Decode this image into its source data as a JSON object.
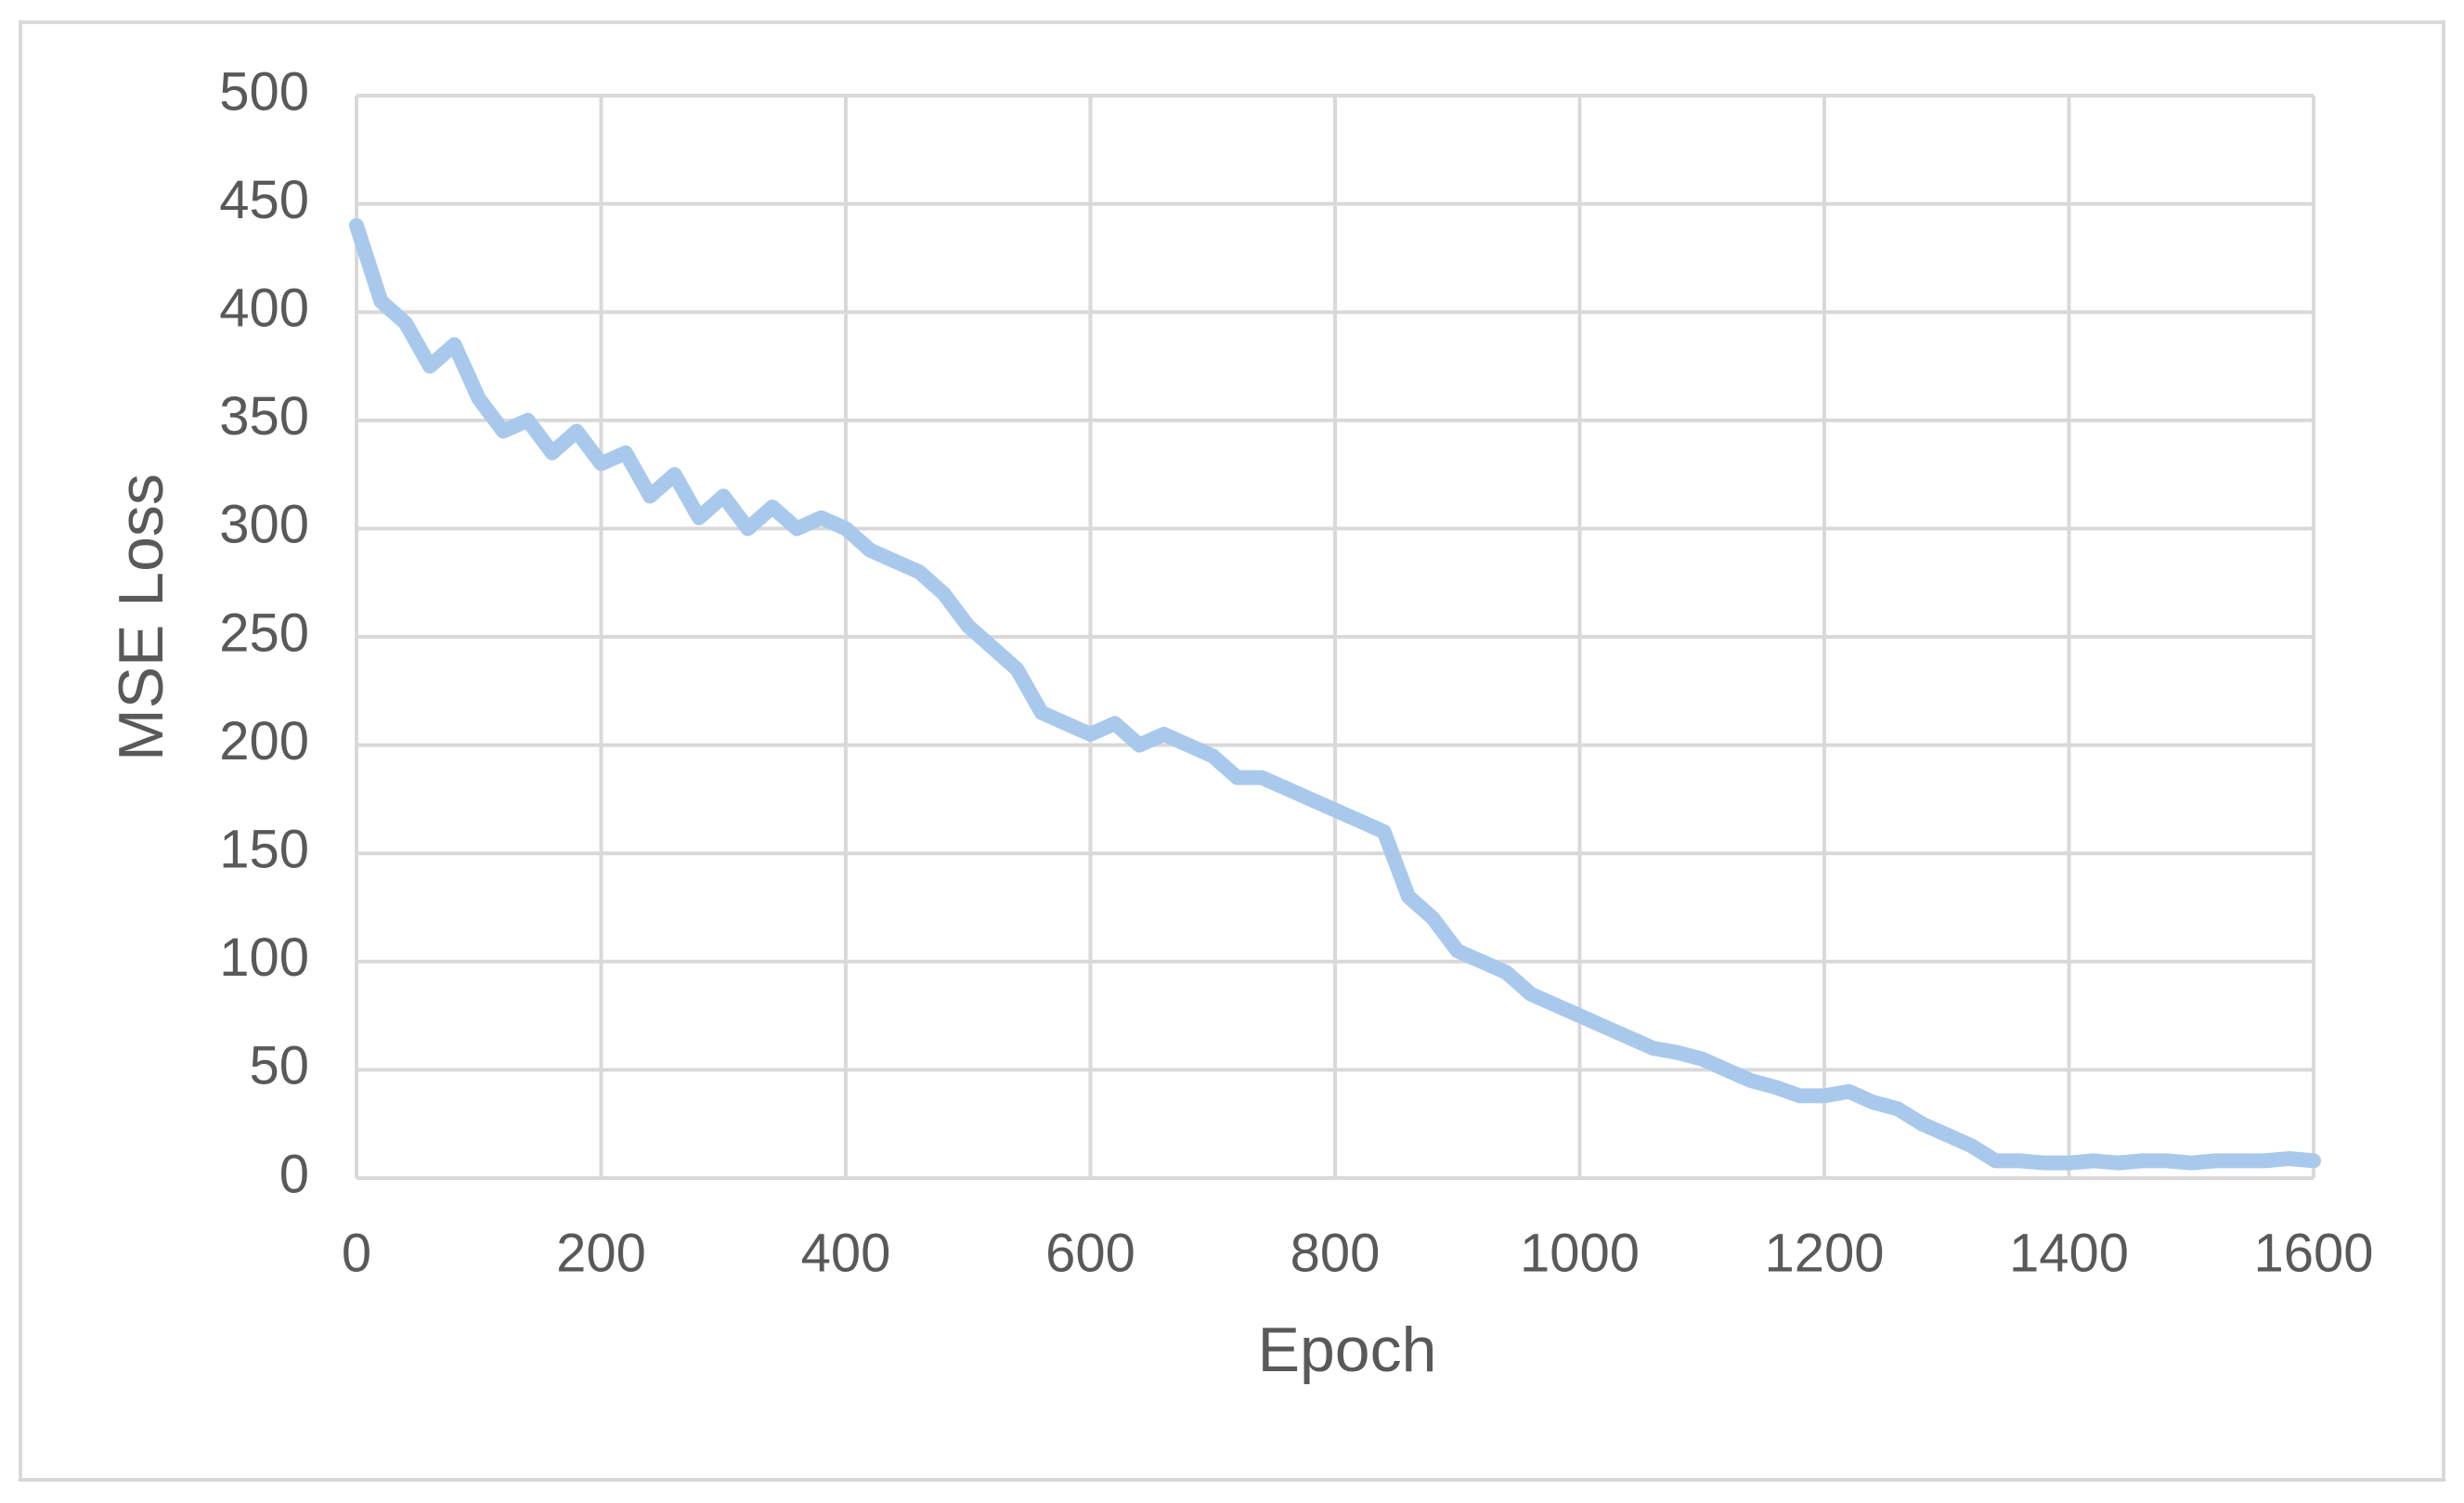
{
  "chart_data": {
    "type": "line",
    "x_label": "Epoch",
    "y_label": "MSE Loss",
    "x": [
      0,
      20,
      40,
      60,
      80,
      100,
      120,
      140,
      160,
      180,
      200,
      220,
      240,
      260,
      280,
      300,
      320,
      340,
      360,
      380,
      400,
      420,
      440,
      460,
      480,
      500,
      520,
      540,
      560,
      580,
      600,
      620,
      640,
      660,
      680,
      700,
      720,
      740,
      760,
      780,
      800,
      820,
      840,
      860,
      880,
      900,
      920,
      940,
      960,
      980,
      1000,
      1020,
      1040,
      1060,
      1080,
      1100,
      1120,
      1140,
      1160,
      1180,
      1200,
      1220,
      1240,
      1260,
      1280,
      1300,
      1320,
      1340,
      1360,
      1380,
      1400,
      1420,
      1440,
      1460,
      1480,
      1500,
      1520,
      1540,
      1560,
      1580,
      1600
    ],
    "values": [
      440,
      405,
      395,
      375,
      385,
      360,
      345,
      350,
      335,
      345,
      330,
      335,
      315,
      325,
      305,
      315,
      300,
      310,
      300,
      305,
      300,
      290,
      285,
      280,
      270,
      255,
      245,
      235,
      215,
      210,
      205,
      210,
      200,
      205,
      200,
      195,
      185,
      185,
      180,
      175,
      170,
      165,
      160,
      130,
      120,
      105,
      100,
      95,
      85,
      80,
      75,
      70,
      65,
      60,
      58,
      55,
      50,
      45,
      42,
      38,
      38,
      40,
      35,
      32,
      25,
      20,
      15,
      8,
      8,
      7,
      7,
      8,
      7,
      8,
      8,
      7,
      8,
      8,
      8,
      9,
      8
    ],
    "color": "#a9c9ec",
    "xlim": [
      0,
      1600
    ],
    "xticks": [
      0,
      200,
      400,
      600,
      800,
      1000,
      1200,
      1400,
      1600
    ],
    "ylim": [
      0,
      500
    ],
    "yticks": [
      0,
      50,
      100,
      150,
      200,
      250,
      300,
      350,
      400,
      450,
      500
    ],
    "grid": true
  }
}
